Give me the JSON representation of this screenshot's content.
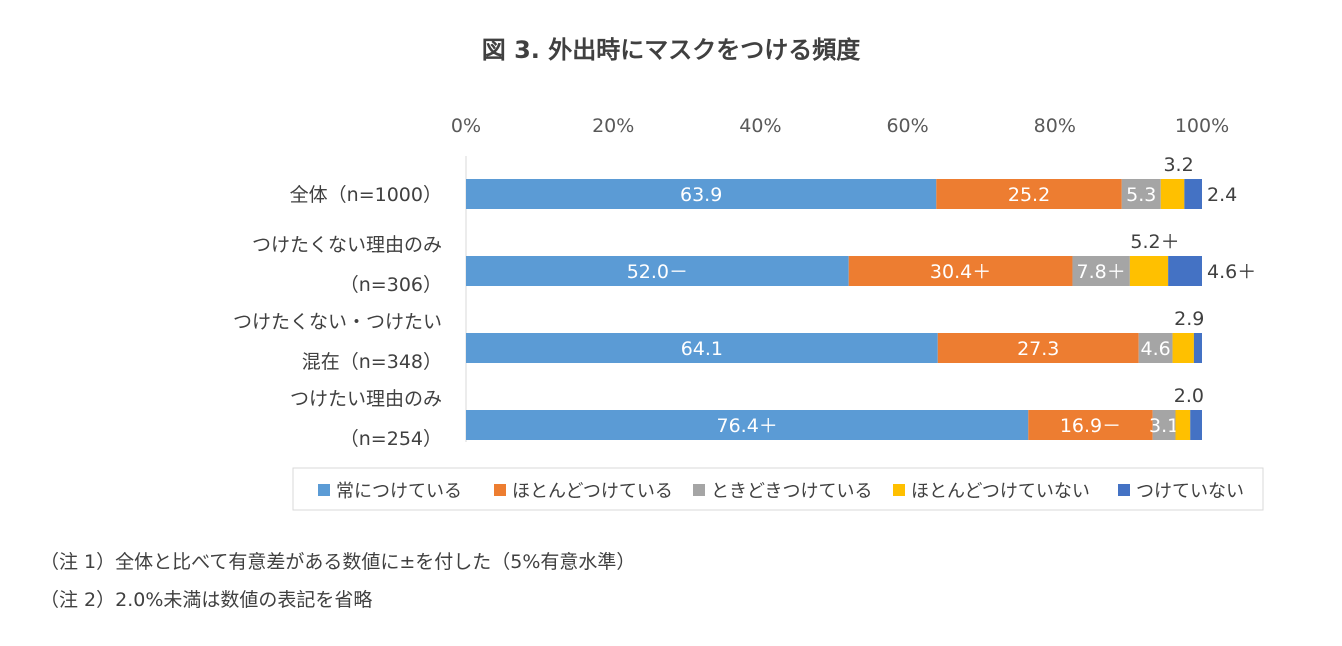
{
  "title": "図 3.  外出時にマスクをつける頻度",
  "chart_data": {
    "type": "bar",
    "orientation": "horizontal",
    "stacked": "percent",
    "x_ticks": [
      "0%",
      "20%",
      "40%",
      "60%",
      "80%",
      "100%"
    ],
    "xlim": [
      0,
      100
    ],
    "categories": [
      {
        "lines": [
          "全体（n=1000）"
        ]
      },
      {
        "lines": [
          "つけたくない理由のみ",
          "（n=306）"
        ]
      },
      {
        "lines": [
          "つけたくない・つけたい",
          "混在（n=348）"
        ]
      },
      {
        "lines": [
          "つけたい理由のみ",
          "（n=254）"
        ]
      }
    ],
    "series": [
      {
        "name": "常につけている",
        "color": "#5B9BD5",
        "values": [
          63.9,
          52.0,
          64.1,
          76.4
        ],
        "labels": [
          "63.9",
          "52.0－",
          "64.1",
          "76.4＋"
        ]
      },
      {
        "name": "ほとんどつけている",
        "color": "#ED7D31",
        "values": [
          25.2,
          30.4,
          27.3,
          16.9
        ],
        "labels": [
          "25.2",
          "30.4＋",
          "27.3",
          "16.9－"
        ]
      },
      {
        "name": "ときどきつけている",
        "color": "#A5A5A5",
        "values": [
          5.3,
          7.8,
          4.6,
          3.1
        ],
        "labels": [
          "5.3",
          "7.8＋",
          "4.6",
          "3.1"
        ]
      },
      {
        "name": "ほとんどつけていない",
        "color": "#FFC000",
        "values": [
          3.2,
          5.2,
          2.9,
          2.0
        ],
        "labels": [
          "3.2",
          "5.2＋",
          "2.9",
          "2.0"
        ]
      },
      {
        "name": "つけていない",
        "color": "#4472C4",
        "values": [
          2.4,
          4.6,
          1.1,
          1.6
        ],
        "labels": [
          "2.4",
          "4.6＋",
          "",
          ""
        ]
      }
    ],
    "legend_position": "bottom"
  },
  "notes": [
    "（注 1）全体と比べて有意差がある数値に±を付した（5%有意水準）",
    "（注 2）2.0%未満は数値の表記を省略"
  ]
}
